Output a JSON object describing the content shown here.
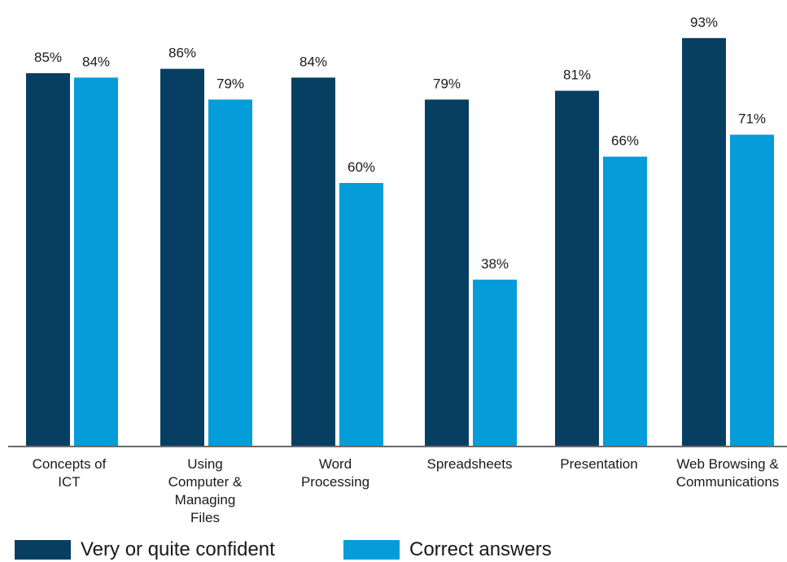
{
  "chart_data": {
    "type": "bar",
    "categories": [
      [
        "Concepts of",
        "ICT"
      ],
      [
        "Using",
        "Computer &",
        "Managing",
        "Files"
      ],
      [
        "Word",
        "Processing"
      ],
      [
        "Spreadsheets"
      ],
      [
        "Presentation"
      ],
      [
        "Web Browsing &",
        "Communications"
      ]
    ],
    "series": [
      {
        "name": "Very or quite confident",
        "values": [
          85,
          86,
          84,
          79,
          81,
          93
        ],
        "labels": [
          "85%",
          "86%",
          "84%",
          "79%",
          "81%",
          "93%"
        ],
        "color": "#073f63"
      },
      {
        "name": "Correct answers",
        "values": [
          84,
          79,
          60,
          38,
          66,
          71
        ],
        "labels": [
          "84%",
          "79%",
          "60%",
          "38%",
          "66%",
          "71%"
        ],
        "color": "#049cd9"
      }
    ],
    "ylim": [
      0,
      100
    ],
    "grid": false,
    "legend_position": "bottom-left",
    "axis_color": "#6b6b6b",
    "title": "",
    "xlabel": "",
    "ylabel": ""
  }
}
